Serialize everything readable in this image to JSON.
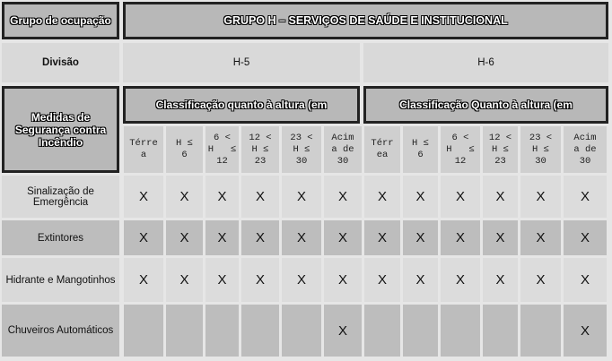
{
  "header": {
    "group_label": "Grupo de ocupação",
    "group_title": "GRUPO H – SERVIÇOS DE SAÚDE E INSTITUCIONAL",
    "division_label": "Divisão",
    "divisions": [
      "H-5",
      "H-6"
    ],
    "measures_label": "Medidas de Segurança contra Incêndio",
    "classification": [
      "Classificação quanto à altura (em",
      "Classificação Quanto à altura (em"
    ]
  },
  "columns": [
    [
      "Térre",
      "a"
    ],
    [
      "H ≤",
      "6"
    ],
    [
      "6 <",
      "H   ≤",
      "12"
    ],
    [
      "12 <",
      "H ≤",
      "23"
    ],
    [
      "23 <",
      "H ≤",
      "30"
    ],
    [
      "Acim",
      "a de",
      "30"
    ],
    [
      "Térr",
      "ea"
    ],
    [
      "H ≤",
      "6"
    ],
    [
      "6 <",
      "H   ≤",
      "12"
    ],
    [
      "12 <",
      "H ≤",
      "23"
    ],
    [
      "23 <",
      "H ≤",
      "30"
    ],
    [
      "Acim",
      "a de",
      "30"
    ]
  ],
  "rows": [
    {
      "label": "Sinalização de Emergência",
      "marks": [
        "X",
        "X",
        "X",
        "X",
        "X",
        "X",
        "X",
        "X",
        "X",
        "X",
        "X",
        "X"
      ],
      "shade": false
    },
    {
      "label": "Extintores",
      "marks": [
        "X",
        "X",
        "X",
        "X",
        "X",
        "X",
        "X",
        "X",
        "X",
        "X",
        "X",
        "X"
      ],
      "shade": true
    },
    {
      "label": "Hidrante e Mangotinhos",
      "marks": [
        "X",
        "X",
        "X",
        "X",
        "X",
        "X",
        "X",
        "X",
        "X",
        "X",
        "X",
        "X"
      ],
      "shade": false
    },
    {
      "label": "Chuveiros Automáticos",
      "marks": [
        "",
        "",
        "",
        "",
        "",
        "X",
        "",
        "",
        "",
        "",
        "",
        "X"
      ],
      "shade": true
    }
  ]
}
